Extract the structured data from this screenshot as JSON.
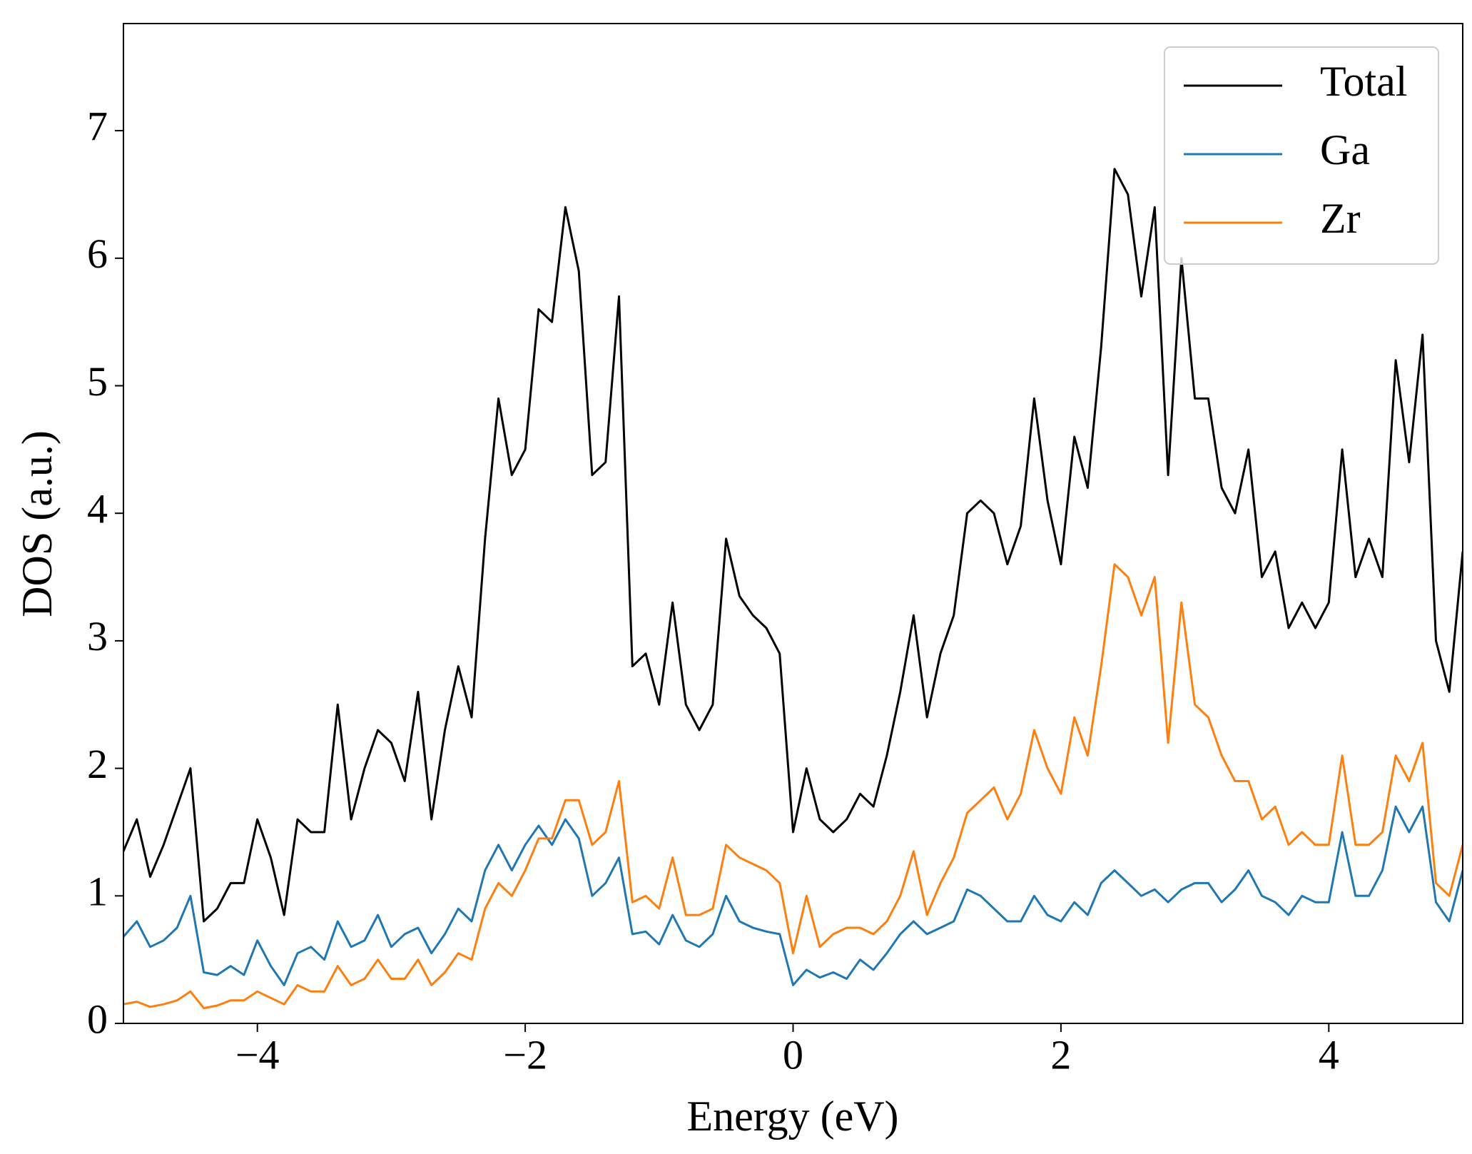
{
  "chart_data": {
    "type": "line",
    "xlabel": "Energy (eV)",
    "ylabel": "DOS (a.u.)",
    "xlim": [
      -5,
      5
    ],
    "ylim": [
      0,
      7.84
    ],
    "xticks": [
      {
        "value": -4,
        "label": "−4"
      },
      {
        "value": -2,
        "label": "−2"
      },
      0,
      2,
      4
    ],
    "yticks": [
      0,
      1,
      2,
      3,
      4,
      5,
      6,
      7
    ],
    "grid": false,
    "legend": "upper right",
    "x": [
      -5.0,
      -4.9,
      -4.8,
      -4.7,
      -4.6,
      -4.5,
      -4.4,
      -4.3,
      -4.2,
      -4.1,
      -4.0,
      -3.9,
      -3.8,
      -3.7,
      -3.6,
      -3.5,
      -3.4,
      -3.3,
      -3.2,
      -3.1,
      -3.0,
      -2.9,
      -2.8,
      -2.7,
      -2.6,
      -2.5,
      -2.4,
      -2.3,
      -2.2,
      -2.1,
      -2.0,
      -1.9,
      -1.8,
      -1.7,
      -1.6,
      -1.5,
      -1.4,
      -1.3,
      -1.2,
      -1.1,
      -1.0,
      -0.9,
      -0.8,
      -0.7,
      -0.6,
      -0.5,
      -0.4,
      -0.3,
      -0.2,
      -0.1,
      0.0,
      0.1,
      0.2,
      0.3,
      0.4,
      0.5,
      0.6,
      0.7,
      0.8,
      0.9,
      1.0,
      1.1,
      1.2,
      1.3,
      1.4,
      1.5,
      1.6,
      1.7,
      1.8,
      1.9,
      2.0,
      2.1,
      2.2,
      2.3,
      2.4,
      2.5,
      2.6,
      2.7,
      2.8,
      2.9,
      3.0,
      3.1,
      3.2,
      3.3,
      3.4,
      3.5,
      3.6,
      3.7,
      3.8,
      3.9,
      4.0,
      4.1,
      4.2,
      4.3,
      4.4,
      4.5,
      4.6,
      4.7,
      4.8,
      4.9,
      5.0
    ],
    "series": [
      {
        "name": "Total",
        "color": "#000000",
        "values": [
          1.35,
          1.6,
          1.15,
          1.4,
          1.7,
          2.0,
          0.8,
          0.9,
          1.1,
          1.1,
          1.6,
          1.3,
          0.85,
          1.6,
          1.5,
          1.5,
          2.5,
          1.6,
          2.0,
          2.3,
          2.2,
          1.9,
          2.6,
          1.6,
          2.3,
          2.8,
          2.4,
          3.8,
          4.9,
          4.3,
          4.5,
          5.6,
          5.5,
          6.4,
          5.9,
          4.3,
          4.4,
          5.7,
          2.8,
          2.9,
          2.5,
          3.3,
          2.5,
          2.3,
          2.5,
          3.8,
          3.35,
          3.2,
          3.1,
          2.9,
          1.5,
          2.0,
          1.6,
          1.5,
          1.6,
          1.8,
          1.7,
          2.1,
          2.6,
          3.2,
          2.4,
          2.9,
          3.2,
          4.0,
          4.1,
          4.0,
          3.6,
          3.9,
          4.9,
          4.1,
          3.6,
          4.6,
          4.2,
          5.3,
          6.7,
          6.5,
          5.7,
          6.4,
          4.3,
          6.0,
          4.9,
          4.9,
          4.2,
          4.0,
          4.5,
          3.5,
          3.7,
          3.1,
          3.3,
          3.1,
          3.3,
          4.5,
          3.5,
          3.8,
          3.5,
          5.2,
          4.4,
          5.4,
          3.0,
          2.6,
          3.7
        ]
      },
      {
        "name": "Ga",
        "color": "#1f77b4",
        "values": [
          0.68,
          0.8,
          0.6,
          0.65,
          0.75,
          1.0,
          0.4,
          0.38,
          0.45,
          0.38,
          0.65,
          0.45,
          0.3,
          0.55,
          0.6,
          0.5,
          0.8,
          0.6,
          0.65,
          0.85,
          0.6,
          0.7,
          0.75,
          0.55,
          0.7,
          0.9,
          0.8,
          1.2,
          1.4,
          1.2,
          1.4,
          1.55,
          1.4,
          1.6,
          1.45,
          1.0,
          1.1,
          1.3,
          0.7,
          0.72,
          0.62,
          0.85,
          0.65,
          0.6,
          0.7,
          1.0,
          0.8,
          0.75,
          0.72,
          0.7,
          0.3,
          0.42,
          0.36,
          0.4,
          0.35,
          0.5,
          0.42,
          0.55,
          0.7,
          0.8,
          0.7,
          0.75,
          0.8,
          1.05,
          1.0,
          0.9,
          0.8,
          0.8,
          1.0,
          0.85,
          0.8,
          0.95,
          0.85,
          1.1,
          1.2,
          1.1,
          1.0,
          1.05,
          0.95,
          1.05,
          1.1,
          1.1,
          0.95,
          1.05,
          1.2,
          1.0,
          0.95,
          0.85,
          1.0,
          0.95,
          0.95,
          1.5,
          1.0,
          1.0,
          1.2,
          1.7,
          1.5,
          1.7,
          0.95,
          0.8,
          1.2
        ]
      },
      {
        "name": "Zr",
        "color": "#ff7f0e",
        "values": [
          0.15,
          0.17,
          0.13,
          0.15,
          0.18,
          0.25,
          0.12,
          0.14,
          0.18,
          0.18,
          0.25,
          0.2,
          0.15,
          0.3,
          0.25,
          0.25,
          0.45,
          0.3,
          0.35,
          0.5,
          0.35,
          0.35,
          0.5,
          0.3,
          0.4,
          0.55,
          0.5,
          0.9,
          1.1,
          1.0,
          1.2,
          1.45,
          1.45,
          1.75,
          1.75,
          1.4,
          1.5,
          1.9,
          0.95,
          1.0,
          0.9,
          1.3,
          0.85,
          0.85,
          0.9,
          1.4,
          1.3,
          1.25,
          1.2,
          1.1,
          0.55,
          1.0,
          0.6,
          0.7,
          0.75,
          0.75,
          0.7,
          0.8,
          1.0,
          1.35,
          0.85,
          1.1,
          1.3,
          1.65,
          1.75,
          1.85,
          1.6,
          1.8,
          2.3,
          2.0,
          1.8,
          2.4,
          2.1,
          2.8,
          3.6,
          3.5,
          3.2,
          3.5,
          2.2,
          3.3,
          2.5,
          2.4,
          2.1,
          1.9,
          1.9,
          1.6,
          1.7,
          1.4,
          1.5,
          1.4,
          1.4,
          2.1,
          1.4,
          1.4,
          1.5,
          2.1,
          1.9,
          2.2,
          1.1,
          1.0,
          1.4
        ]
      }
    ]
  }
}
